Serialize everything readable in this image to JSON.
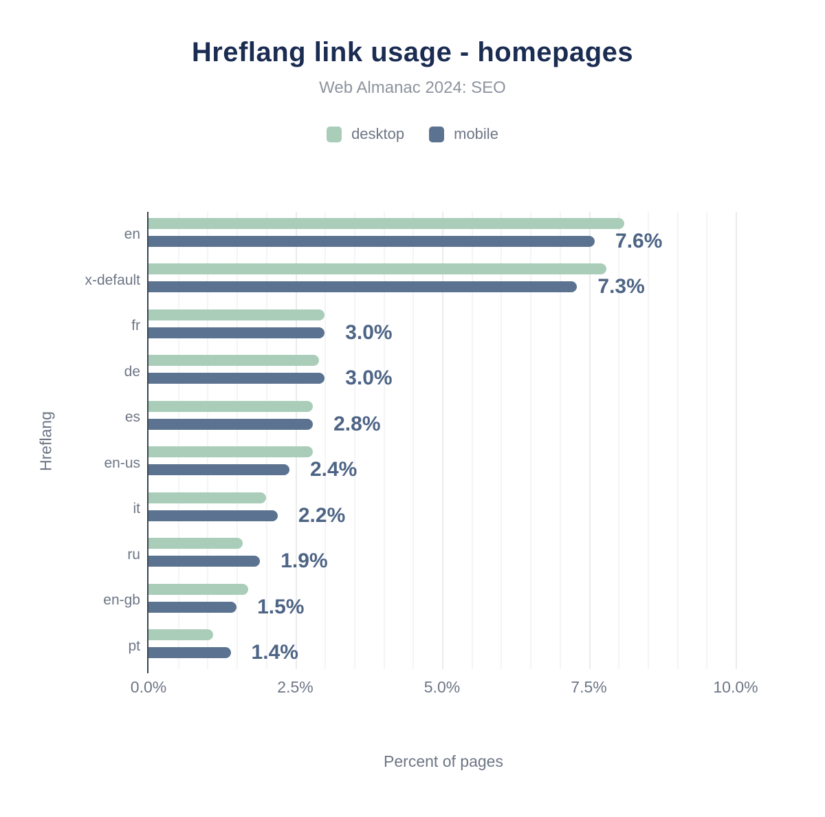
{
  "header": {
    "title": "Hreflang link usage - homepages",
    "subtitle": "Web Almanac 2024: SEO"
  },
  "legend": {
    "items": [
      {
        "label": "desktop",
        "color": "#a9cdb8"
      },
      {
        "label": "mobile",
        "color": "#5b7390"
      }
    ]
  },
  "colors": {
    "title_text": "#1b2c52",
    "muted_text": "#6d7585",
    "subtitle_text": "#8d939e",
    "value_label_text": "#4d6485",
    "desktop_bar": "#a9cdb8",
    "mobile_bar": "#5b7390",
    "axis_line": "#3a4250",
    "grid_minor": "#f4f4f4",
    "grid_major": "#ebebeb"
  },
  "chart_data": {
    "type": "bar",
    "orientation": "horizontal",
    "title": "Hreflang link usage - homepages",
    "subtitle": "Web Almanac 2024: SEO",
    "xlabel": "Percent of pages",
    "ylabel": "Hreflang",
    "categories": [
      "en",
      "x-default",
      "fr",
      "de",
      "es",
      "en-us",
      "it",
      "ru",
      "en-gb",
      "pt"
    ],
    "series": [
      {
        "name": "desktop",
        "values": [
          8.1,
          7.8,
          3.0,
          2.9,
          2.8,
          2.8,
          2.0,
          1.6,
          1.7,
          1.1
        ]
      },
      {
        "name": "mobile",
        "values": [
          7.6,
          7.3,
          3.0,
          3.0,
          2.8,
          2.4,
          2.2,
          1.9,
          1.5,
          1.4
        ]
      }
    ],
    "bar_labels": [
      "7.6%",
      "7.3%",
      "3.0%",
      "3.0%",
      "2.8%",
      "2.4%",
      "2.2%",
      "1.9%",
      "1.5%",
      "1.4%"
    ],
    "bar_labels_note": "labels show mobile series value",
    "x_ticks": [
      "0.0%",
      "2.5%",
      "5.0%",
      "7.5%",
      "10.0%"
    ],
    "xlim": [
      0,
      10.5
    ],
    "grid": {
      "vertical_minor_step": 0.5,
      "vertical_major_step": 2.5,
      "horizontal": false
    },
    "legend_position": "top"
  }
}
